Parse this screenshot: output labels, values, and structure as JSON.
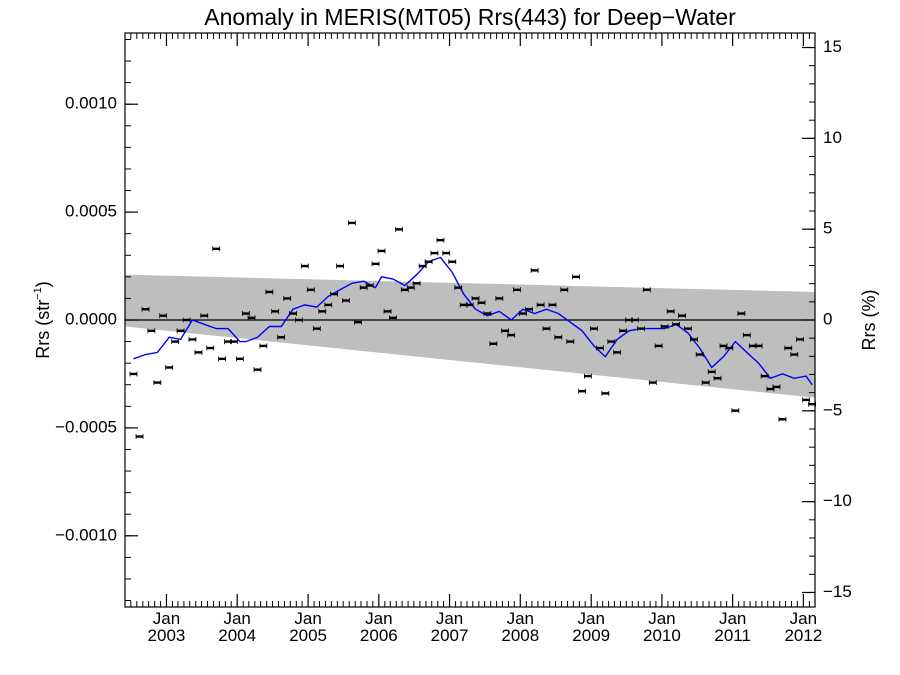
{
  "chart_data": {
    "type": "scatter",
    "title": "Anomaly in MERIS(MT05) Rrs(443) for Deep−Water",
    "ylabel_left": "Rrs (str",
    "ylabel_left_sup": "−1",
    "ylabel_left_close": ")",
    "ylabel_right": "Rrs (%)",
    "x_range": [
      "2002-06-01",
      "2012-03-01"
    ],
    "y_left_range": [
      -0.00133,
      0.00133
    ],
    "y_right_range": [
      -15.8,
      15.8
    ],
    "y_left_ticks": [
      {
        "value": 0.001,
        "label": "0.0010"
      },
      {
        "value": 0.0005,
        "label": "0.0005"
      },
      {
        "value": 0.0,
        "label": "0.0000"
      },
      {
        "value": -0.0005,
        "label": "−0.0005"
      },
      {
        "value": -0.001,
        "label": "−0.0010"
      }
    ],
    "y_right_ticks": [
      {
        "value": 15,
        "label": "15"
      },
      {
        "value": 10,
        "label": "10"
      },
      {
        "value": 5,
        "label": "5"
      },
      {
        "value": 0,
        "label": "0"
      },
      {
        "value": -5,
        "label": "−5"
      },
      {
        "value": -10,
        "label": "−10"
      },
      {
        "value": -15,
        "label": "−15"
      }
    ],
    "x_ticks": [
      {
        "date": "2003-01-01",
        "month": "Jan",
        "year": "2003"
      },
      {
        "date": "2004-01-01",
        "month": "Jan",
        "year": "2004"
      },
      {
        "date": "2005-01-01",
        "month": "Jan",
        "year": "2005"
      },
      {
        "date": "2006-01-01",
        "month": "Jan",
        "year": "2006"
      },
      {
        "date": "2007-01-01",
        "month": "Jan",
        "year": "2007"
      },
      {
        "date": "2008-01-01",
        "month": "Jan",
        "year": "2008"
      },
      {
        "date": "2009-01-01",
        "month": "Jan",
        "year": "2009"
      },
      {
        "date": "2010-01-01",
        "month": "Jan",
        "year": "2010"
      },
      {
        "date": "2011-01-01",
        "month": "Jan",
        "year": "2011"
      },
      {
        "date": "2012-01-01",
        "month": "Jan",
        "year": "2012"
      }
    ],
    "confidence_band": {
      "start": {
        "date": "2002-06-01",
        "upper": 0.00021,
        "lower": -3e-05
      },
      "end": {
        "date": "2012-03-01",
        "upper": 0.00013,
        "lower": -0.00036
      },
      "color": "#bebebe"
    },
    "zero_line": 0,
    "series": [
      {
        "kind": "monthly_anomaly_markers",
        "color": "#000000",
        "points": [
          {
            "date": "2002-07",
            "y": -0.00025
          },
          {
            "date": "2002-08",
            "y": -0.00054
          },
          {
            "date": "2002-09",
            "y": 5e-05
          },
          {
            "date": "2002-10",
            "y": -5e-05
          },
          {
            "date": "2002-11",
            "y": -0.00029
          },
          {
            "date": "2002-12",
            "y": 2e-05
          },
          {
            "date": "2003-01",
            "y": -0.00022
          },
          {
            "date": "2003-02",
            "y": -0.0001
          },
          {
            "date": "2003-03",
            "y": -5e-05
          },
          {
            "date": "2003-04",
            "y": 0.0
          },
          {
            "date": "2003-05",
            "y": -9e-05
          },
          {
            "date": "2003-06",
            "y": -0.00015
          },
          {
            "date": "2003-07",
            "y": 2e-05
          },
          {
            "date": "2003-08",
            "y": -0.00013
          },
          {
            "date": "2003-09",
            "y": 0.00033
          },
          {
            "date": "2003-10",
            "y": -0.00018
          },
          {
            "date": "2003-11",
            "y": -0.0001
          },
          {
            "date": "2003-12",
            "y": -0.0001
          },
          {
            "date": "2004-01",
            "y": -0.00018
          },
          {
            "date": "2004-02",
            "y": 3e-05
          },
          {
            "date": "2004-03",
            "y": 1e-05
          },
          {
            "date": "2004-04",
            "y": -0.00023
          },
          {
            "date": "2004-05",
            "y": -0.00012
          },
          {
            "date": "2004-06",
            "y": 0.00013
          },
          {
            "date": "2004-07",
            "y": 4e-05
          },
          {
            "date": "2004-08",
            "y": -8e-05
          },
          {
            "date": "2004-09",
            "y": 0.0001
          },
          {
            "date": "2004-10",
            "y": 3e-05
          },
          {
            "date": "2004-11",
            "y": -0.0
          },
          {
            "date": "2004-12",
            "y": 0.00025
          },
          {
            "date": "2005-01",
            "y": 0.00014
          },
          {
            "date": "2005-02",
            "y": -4e-05
          },
          {
            "date": "2005-03",
            "y": 4e-05
          },
          {
            "date": "2005-04",
            "y": 7e-05
          },
          {
            "date": "2005-05",
            "y": 0.00012
          },
          {
            "date": "2005-06",
            "y": 0.00025
          },
          {
            "date": "2005-07",
            "y": 9e-05
          },
          {
            "date": "2005-08",
            "y": 0.00045
          },
          {
            "date": "2005-09",
            "y": -1e-05
          },
          {
            "date": "2005-10",
            "y": 0.00015
          },
          {
            "date": "2005-11",
            "y": 0.00016
          },
          {
            "date": "2005-12",
            "y": 0.00026
          },
          {
            "date": "2006-01",
            "y": 0.00032
          },
          {
            "date": "2006-02",
            "y": 4e-05
          },
          {
            "date": "2006-03",
            "y": 1e-05
          },
          {
            "date": "2006-04",
            "y": 0.00042
          },
          {
            "date": "2006-05",
            "y": 0.00014
          },
          {
            "date": "2006-06",
            "y": 0.00015
          },
          {
            "date": "2006-07",
            "y": 0.00017
          },
          {
            "date": "2006-08",
            "y": 0.00025
          },
          {
            "date": "2006-09",
            "y": 0.00027
          },
          {
            "date": "2006-10",
            "y": 0.00031
          },
          {
            "date": "2006-11",
            "y": 0.00037
          },
          {
            "date": "2006-12",
            "y": 0.00031
          },
          {
            "date": "2007-01",
            "y": 0.00027
          },
          {
            "date": "2007-02",
            "y": 0.00015
          },
          {
            "date": "2007-03",
            "y": 7e-05
          },
          {
            "date": "2007-04",
            "y": 7e-05
          },
          {
            "date": "2007-05",
            "y": 0.0001
          },
          {
            "date": "2007-06",
            "y": 8e-05
          },
          {
            "date": "2007-07",
            "y": 3e-05
          },
          {
            "date": "2007-08",
            "y": -0.00011
          },
          {
            "date": "2007-09",
            "y": 0.0001
          },
          {
            "date": "2007-10",
            "y": -5e-05
          },
          {
            "date": "2007-11",
            "y": -7e-05
          },
          {
            "date": "2007-12",
            "y": 0.00014
          },
          {
            "date": "2008-01",
            "y": 3e-05
          },
          {
            "date": "2008-02",
            "y": 5e-05
          },
          {
            "date": "2008-03",
            "y": 0.00023
          },
          {
            "date": "2008-04",
            "y": 7e-05
          },
          {
            "date": "2008-05",
            "y": -4e-05
          },
          {
            "date": "2008-06",
            "y": 7e-05
          },
          {
            "date": "2008-07",
            "y": -8e-05
          },
          {
            "date": "2008-08",
            "y": 0.00014
          },
          {
            "date": "2008-09",
            "y": -0.0001
          },
          {
            "date": "2008-10",
            "y": 0.0002
          },
          {
            "date": "2008-11",
            "y": -0.00033
          },
          {
            "date": "2008-12",
            "y": -0.00026
          },
          {
            "date": "2009-01",
            "y": -4e-05
          },
          {
            "date": "2009-02",
            "y": -0.00013
          },
          {
            "date": "2009-03",
            "y": -0.00034
          },
          {
            "date": "2009-04",
            "y": -0.0001
          },
          {
            "date": "2009-05",
            "y": -0.00015
          },
          {
            "date": "2009-06",
            "y": -5e-05
          },
          {
            "date": "2009-07",
            "y": 0.0
          },
          {
            "date": "2009-08",
            "y": 0.0
          },
          {
            "date": "2009-09",
            "y": -4e-05
          },
          {
            "date": "2009-10",
            "y": 0.00014
          },
          {
            "date": "2009-11",
            "y": -0.00029
          },
          {
            "date": "2009-12",
            "y": -0.00012
          },
          {
            "date": "2010-01",
            "y": -3e-05
          },
          {
            "date": "2010-02",
            "y": 4e-05
          },
          {
            "date": "2010-03",
            "y": -2e-05
          },
          {
            "date": "2010-04",
            "y": 2e-05
          },
          {
            "date": "2010-05",
            "y": -4e-05
          },
          {
            "date": "2010-06",
            "y": -9e-05
          },
          {
            "date": "2010-07",
            "y": -0.00016
          },
          {
            "date": "2010-08",
            "y": -0.00029
          },
          {
            "date": "2010-09",
            "y": -0.00024
          },
          {
            "date": "2010-10",
            "y": -0.00027
          },
          {
            "date": "2010-11",
            "y": -0.00012
          },
          {
            "date": "2010-12",
            "y": -0.00013
          },
          {
            "date": "2011-01",
            "y": -0.00042
          },
          {
            "date": "2011-02",
            "y": 3e-05
          },
          {
            "date": "2011-03",
            "y": -7e-05
          },
          {
            "date": "2011-04",
            "y": -0.00012
          },
          {
            "date": "2011-05",
            "y": -0.00012
          },
          {
            "date": "2011-06",
            "y": -0.00026
          },
          {
            "date": "2011-07",
            "y": -0.00032
          },
          {
            "date": "2011-08",
            "y": -0.00031
          },
          {
            "date": "2011-09",
            "y": -0.00046
          },
          {
            "date": "2011-10",
            "y": -0.00013
          },
          {
            "date": "2011-11",
            "y": -0.00016
          },
          {
            "date": "2011-12",
            "y": -9e-05
          },
          {
            "date": "2012-01",
            "y": -0.00037
          },
          {
            "date": "2012-02",
            "y": -0.00039
          }
        ]
      },
      {
        "kind": "running_mean_line",
        "color": "#0000ff",
        "points": [
          {
            "date": "2002-07",
            "y": -0.00018
          },
          {
            "date": "2002-09",
            "y": -0.00016
          },
          {
            "date": "2002-11",
            "y": -0.00015
          },
          {
            "date": "2003-01",
            "y": -8e-05
          },
          {
            "date": "2003-03",
            "y": -9e-05
          },
          {
            "date": "2003-05",
            "y": 0.0
          },
          {
            "date": "2003-07",
            "y": -2e-05
          },
          {
            "date": "2003-09",
            "y": -4e-05
          },
          {
            "date": "2003-11",
            "y": -4e-05
          },
          {
            "date": "2004-01",
            "y": -0.0001
          },
          {
            "date": "2004-02",
            "y": -0.0001
          },
          {
            "date": "2004-04",
            "y": -8e-05
          },
          {
            "date": "2004-06",
            "y": -3e-05
          },
          {
            "date": "2004-08",
            "y": -3e-05
          },
          {
            "date": "2004-10",
            "y": 5e-05
          },
          {
            "date": "2004-12",
            "y": 7e-05
          },
          {
            "date": "2005-02",
            "y": 6e-05
          },
          {
            "date": "2005-04",
            "y": 0.00011
          },
          {
            "date": "2005-06",
            "y": 0.00014
          },
          {
            "date": "2005-08",
            "y": 0.00017
          },
          {
            "date": "2005-10",
            "y": 0.00018
          },
          {
            "date": "2005-12",
            "y": 0.00015
          },
          {
            "date": "2006-01",
            "y": 0.0002
          },
          {
            "date": "2006-03",
            "y": 0.00019
          },
          {
            "date": "2006-05",
            "y": 0.00016
          },
          {
            "date": "2006-07",
            "y": 0.00021
          },
          {
            "date": "2006-09",
            "y": 0.00027
          },
          {
            "date": "2006-11",
            "y": 0.00029
          },
          {
            "date": "2007-01",
            "y": 0.00022
          },
          {
            "date": "2007-03",
            "y": 0.00012
          },
          {
            "date": "2007-05",
            "y": 5e-05
          },
          {
            "date": "2007-07",
            "y": 2e-05
          },
          {
            "date": "2007-09",
            "y": 4e-05
          },
          {
            "date": "2007-11",
            "y": 0.0
          },
          {
            "date": "2008-01",
            "y": 5e-05
          },
          {
            "date": "2008-03",
            "y": 3e-05
          },
          {
            "date": "2008-05",
            "y": 5e-05
          },
          {
            "date": "2008-07",
            "y": 3e-05
          },
          {
            "date": "2008-09",
            "y": -1e-05
          },
          {
            "date": "2008-11",
            "y": -5e-05
          },
          {
            "date": "2009-01",
            "y": -0.00012
          },
          {
            "date": "2009-03",
            "y": -0.00017
          },
          {
            "date": "2009-05",
            "y": -9e-05
          },
          {
            "date": "2009-07",
            "y": -5e-05
          },
          {
            "date": "2009-09",
            "y": -4e-05
          },
          {
            "date": "2009-11",
            "y": -4e-05
          },
          {
            "date": "2010-01",
            "y": -4e-05
          },
          {
            "date": "2010-03",
            "y": -2e-05
          },
          {
            "date": "2010-05",
            "y": -6e-05
          },
          {
            "date": "2010-07",
            "y": -0.00013
          },
          {
            "date": "2010-09",
            "y": -0.00022
          },
          {
            "date": "2010-11",
            "y": -0.00017
          },
          {
            "date": "2011-01",
            "y": -0.0001
          },
          {
            "date": "2011-03",
            "y": -0.00015
          },
          {
            "date": "2011-05",
            "y": -0.0002
          },
          {
            "date": "2011-07",
            "y": -0.00027
          },
          {
            "date": "2011-09",
            "y": -0.00025
          },
          {
            "date": "2011-11",
            "y": -0.00027
          },
          {
            "date": "2012-01",
            "y": -0.00026
          },
          {
            "date": "2012-02",
            "y": -0.0003
          }
        ]
      }
    ],
    "grid": false,
    "legend": "none"
  }
}
